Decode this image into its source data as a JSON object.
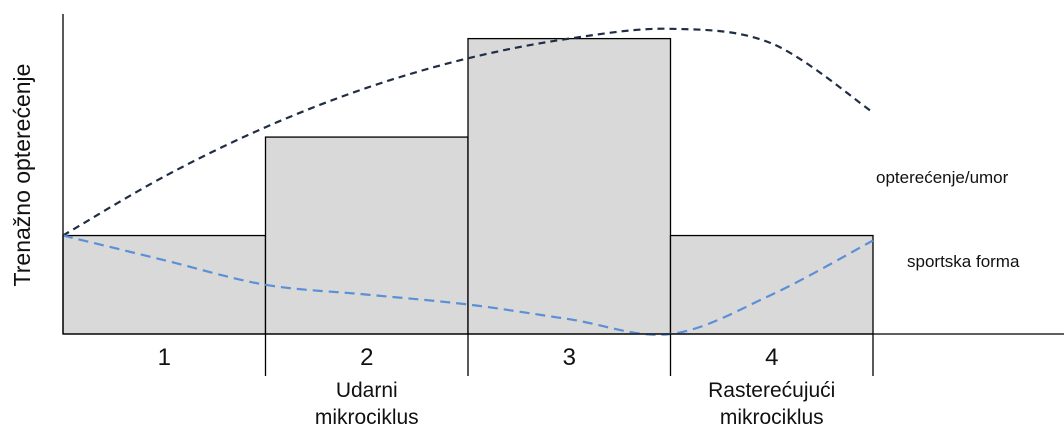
{
  "chart_data": {
    "type": "bar",
    "ylabel": "Trenažno opterećenje",
    "categories": [
      "1",
      "2",
      "3",
      "4"
    ],
    "values": [
      2,
      4,
      6,
      2
    ],
    "ylim": [
      0,
      6.5
    ],
    "grid": false,
    "phase_labels": [
      {
        "lines": [
          "Udarni",
          "mikrociklus"
        ],
        "category": "2"
      },
      {
        "lines": [
          "Rasterećujući",
          "mikrociklus"
        ],
        "category": "4"
      }
    ],
    "series": [
      {
        "name": "opterećenje/umor",
        "style": "dashed",
        "color": "#1f2d45",
        "x": [
          0,
          0.5,
          1,
          1.5,
          2,
          2.5,
          3,
          3.5,
          4
        ],
        "y": [
          2,
          3.2,
          4.2,
          5,
          5.6,
          6,
          6.2,
          5.9,
          4.5
        ]
      },
      {
        "name": "sportska forma",
        "style": "dashed",
        "color": "#5b8fd6",
        "x": [
          0,
          0.5,
          1,
          1.5,
          2,
          2.5,
          3,
          3.5,
          4
        ],
        "y": [
          2,
          1.5,
          1,
          0.8,
          0.6,
          0.3,
          0,
          0.8,
          1.9
        ]
      }
    ],
    "colors": {
      "bar_fill": "#d9d9d9",
      "bar_stroke": "#000000",
      "axis": "#000000"
    }
  }
}
